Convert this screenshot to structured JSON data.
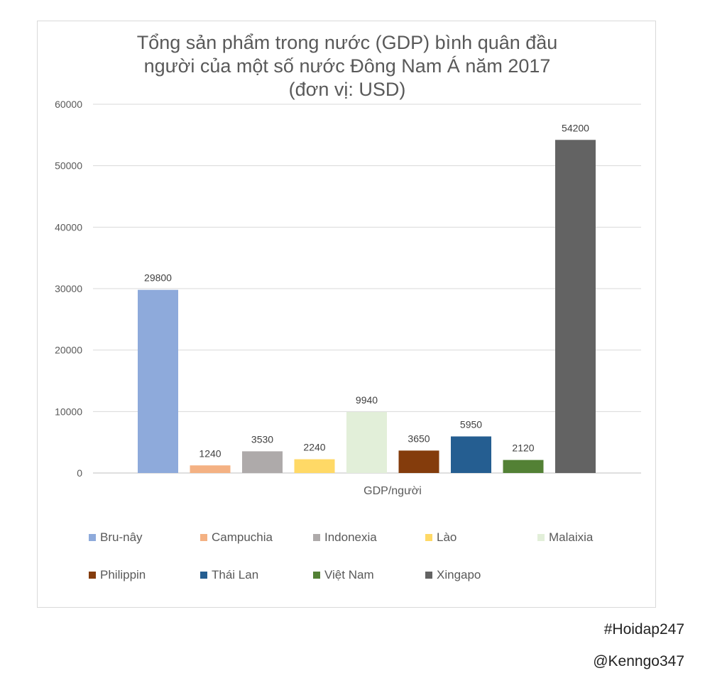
{
  "chart_data": {
    "type": "bar",
    "title_lines": [
      "Tổng sản phẩm trong nước (GDP) bình quân đầu",
      "người của một số nước Đông Nam Á năm 2017",
      "(đơn vị: USD)"
    ],
    "xlabel": "GDP/người",
    "ylabel": "",
    "ylim": [
      0,
      60000
    ],
    "yticks": [
      0,
      10000,
      20000,
      30000,
      40000,
      50000,
      60000
    ],
    "grid": true,
    "legend_position": "bottom",
    "series": [
      {
        "name": "Bru-nây",
        "value": 29800,
        "color": "#8eaadb"
      },
      {
        "name": "Campuchia",
        "value": 1240,
        "color": "#f4b183"
      },
      {
        "name": "Indonexia",
        "value": 3530,
        "color": "#aeaaaa"
      },
      {
        "name": "Lào",
        "value": 2240,
        "color": "#ffd966"
      },
      {
        "name": "Malaixia",
        "value": 9940,
        "color": "#e2efd9"
      },
      {
        "name": "Philippin",
        "value": 3650,
        "color": "#843c0c"
      },
      {
        "name": "Thái Lan",
        "value": 5950,
        "color": "#255e91"
      },
      {
        "name": "Việt Nam",
        "value": 2120,
        "color": "#538135"
      },
      {
        "name": "Xingapo",
        "value": 54200,
        "color": "#636363"
      }
    ]
  },
  "watermarks": {
    "tag": "#Hoidap247",
    "author": "@Kenngo347"
  }
}
